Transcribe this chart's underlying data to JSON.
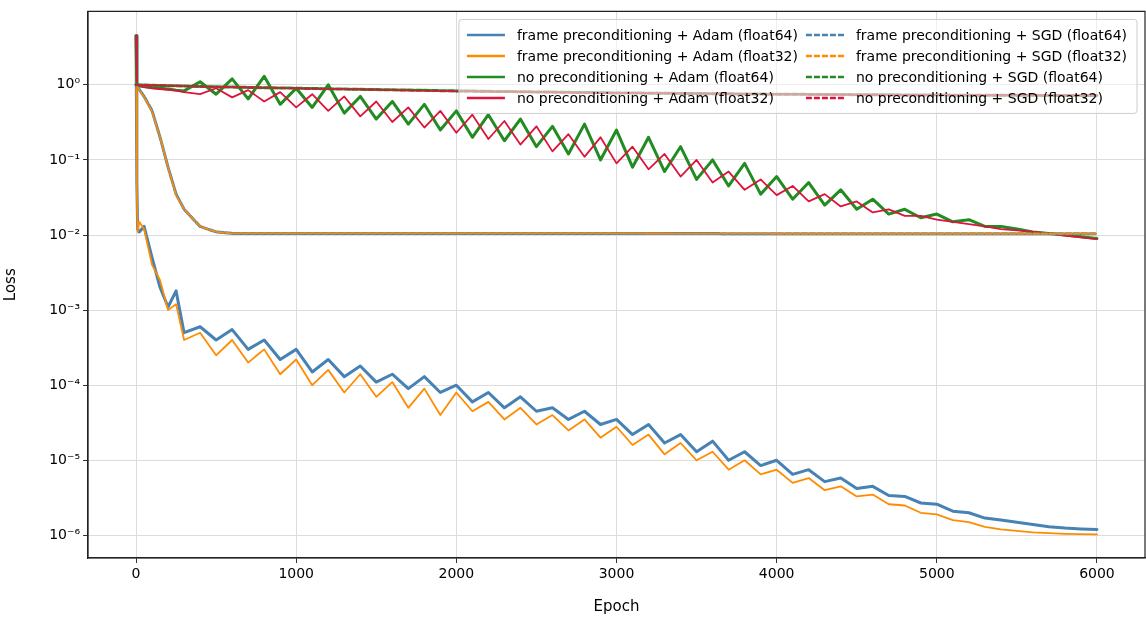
{
  "chart_data": {
    "type": "line",
    "xlabel": "Epoch",
    "ylabel": "Loss",
    "log": "y",
    "grid": true,
    "legend": "top right",
    "marker": "none",
    "xlim": [
      -300,
      6300
    ],
    "xticks": [
      0,
      1000,
      2000,
      3000,
      4000,
      5000,
      6000
    ],
    "ylim": [
      5e-07,
      9.5
    ],
    "yticks": [
      {
        "value": 1e-06,
        "label": "10⁻⁶"
      },
      {
        "value": 1e-05,
        "label": "10⁻⁵"
      },
      {
        "value": 0.0001,
        "label": "10⁻⁴"
      },
      {
        "value": 0.001,
        "label": "10⁻³"
      },
      {
        "value": 0.01,
        "label": "10⁻²"
      },
      {
        "value": 0.1,
        "label": "10⁻¹"
      },
      {
        "value": 1,
        "label": "10⁰"
      }
    ],
    "x": [
      0,
      5,
      10,
      20,
      50,
      100,
      150,
      200,
      250,
      300,
      400,
      500,
      600,
      700,
      800,
      900,
      1000,
      1100,
      1200,
      1300,
      1400,
      1500,
      1600,
      1700,
      1800,
      1900,
      2000,
      2100,
      2200,
      2300,
      2400,
      2500,
      2600,
      2700,
      2800,
      2900,
      3000,
      3100,
      3200,
      3300,
      3400,
      3500,
      3600,
      3700,
      3800,
      3900,
      4000,
      4100,
      4200,
      4300,
      4400,
      4500,
      4600,
      4700,
      4800,
      4900,
      5000,
      5100,
      5200,
      5300,
      5400,
      5500,
      5600,
      5700,
      5800,
      5900,
      6000
    ],
    "series": [
      {
        "name": "frame preconditioning + Adam (float64)",
        "color": "#4682b4",
        "line_style": "solid",
        "values": [
          4.5,
          0.05,
          0.012,
          0.011,
          0.013,
          0.005,
          0.002,
          0.0011,
          0.0018,
          0.0005,
          0.0006,
          0.0004,
          0.00055,
          0.0003,
          0.0004,
          0.00022,
          0.0003,
          0.00015,
          0.00022,
          0.00013,
          0.00018,
          0.00011,
          0.00014,
          9e-05,
          0.00013,
          8e-05,
          0.0001,
          6e-05,
          8e-05,
          5e-05,
          7e-05,
          4.5e-05,
          5e-05,
          3.5e-05,
          4.5e-05,
          3e-05,
          3.5e-05,
          2.2e-05,
          3e-05,
          1.7e-05,
          2.2e-05,
          1.3e-05,
          1.8e-05,
          1e-05,
          1.3e-05,
          8.5e-06,
          1e-05,
          6.5e-06,
          7.5e-06,
          5.2e-06,
          5.8e-06,
          4.2e-06,
          4.5e-06,
          3.4e-06,
          3.3e-06,
          2.7e-06,
          2.6e-06,
          2.1e-06,
          2e-06,
          1.7e-06,
          1.6e-06,
          1.5e-06,
          1.4e-06,
          1.3e-06,
          1.25e-06,
          1.22e-06,
          1.2e-06
        ]
      },
      {
        "name": "frame preconditioning + Adam (float32)",
        "color": "#ff8c00",
        "line_style": "solid",
        "values": [
          4.5,
          0.04,
          0.011,
          0.015,
          0.012,
          0.004,
          0.0025,
          0.001,
          0.0012,
          0.0004,
          0.0005,
          0.00025,
          0.0004,
          0.0002,
          0.0003,
          0.00014,
          0.00022,
          0.0001,
          0.00016,
          8e-05,
          0.00014,
          7e-05,
          0.00011,
          5e-05,
          9e-05,
          4e-05,
          8e-05,
          4.5e-05,
          6e-05,
          3.5e-05,
          5e-05,
          3e-05,
          4e-05,
          2.5e-05,
          3.5e-05,
          2e-05,
          2.8e-05,
          1.6e-05,
          2.2e-05,
          1.2e-05,
          1.7e-05,
          1e-05,
          1.3e-05,
          7.5e-06,
          1e-05,
          6.5e-06,
          7.5e-06,
          5e-06,
          5.8e-06,
          4e-06,
          4.5e-06,
          3.3e-06,
          3.5e-06,
          2.6e-06,
          2.5e-06,
          2e-06,
          1.9e-06,
          1.6e-06,
          1.5e-06,
          1.3e-06,
          1.2e-06,
          1.15e-06,
          1.1e-06,
          1.07e-06,
          1.05e-06,
          1.04e-06,
          1.03e-06
        ]
      },
      {
        "name": "no preconditioning + Adam (float64)",
        "color": "#228b22",
        "line_style": "solid",
        "values": [
          4.5,
          1.0,
          0.98,
          0.97,
          0.95,
          0.92,
          0.9,
          0.88,
          0.85,
          0.83,
          1.1,
          0.75,
          1.2,
          0.65,
          1.3,
          0.55,
          0.9,
          0.5,
          1.0,
          0.42,
          0.7,
          0.35,
          0.6,
          0.3,
          0.55,
          0.25,
          0.45,
          0.2,
          0.4,
          0.18,
          0.35,
          0.15,
          0.28,
          0.12,
          0.3,
          0.1,
          0.25,
          0.08,
          0.2,
          0.07,
          0.15,
          0.055,
          0.1,
          0.045,
          0.09,
          0.035,
          0.06,
          0.03,
          0.05,
          0.025,
          0.04,
          0.022,
          0.03,
          0.019,
          0.022,
          0.017,
          0.019,
          0.015,
          0.016,
          0.013,
          0.013,
          0.012,
          0.011,
          0.0105,
          0.01,
          0.0095,
          0.009
        ]
      },
      {
        "name": "no preconditioning + Adam (float32)",
        "color": "#dc143c",
        "line_style": "solid",
        "values": [
          4.5,
          1.0,
          0.97,
          0.96,
          0.93,
          0.9,
          0.88,
          0.86,
          0.84,
          0.8,
          0.75,
          0.9,
          0.68,
          0.85,
          0.6,
          0.8,
          0.5,
          0.75,
          0.45,
          0.7,
          0.38,
          0.6,
          0.32,
          0.5,
          0.27,
          0.45,
          0.23,
          0.4,
          0.19,
          0.33,
          0.16,
          0.28,
          0.13,
          0.22,
          0.11,
          0.2,
          0.09,
          0.15,
          0.075,
          0.12,
          0.06,
          0.1,
          0.05,
          0.07,
          0.04,
          0.055,
          0.034,
          0.045,
          0.028,
          0.035,
          0.024,
          0.028,
          0.02,
          0.022,
          0.018,
          0.018,
          0.016,
          0.015,
          0.014,
          0.013,
          0.012,
          0.0115,
          0.011,
          0.0105,
          0.0098,
          0.0093,
          0.0088
        ]
      },
      {
        "name": "frame preconditioning + SGD (float64)",
        "color": "#4682b4",
        "line_style": "dashed",
        "x": [
          0,
          5,
          10,
          20,
          50,
          100,
          150,
          200,
          250,
          300,
          400,
          500,
          600,
          1000,
          2000,
          3000,
          4000,
          5000,
          6000
        ],
        "values": [
          1.0,
          0.97,
          0.93,
          0.87,
          0.7,
          0.45,
          0.2,
          0.08,
          0.035,
          0.022,
          0.013,
          0.011,
          0.0105,
          0.0105,
          0.0105,
          0.0105,
          0.0104,
          0.0104,
          0.0104
        ]
      },
      {
        "name": "frame preconditioning + SGD (float32)",
        "color": "#ff8c00",
        "line_style": "dashed",
        "x": [
          0,
          5,
          10,
          20,
          50,
          100,
          150,
          200,
          250,
          300,
          400,
          500,
          600,
          1000,
          2000,
          3000,
          4000,
          5000,
          6000
        ],
        "values": [
          1.0,
          0.96,
          0.92,
          0.86,
          0.69,
          0.44,
          0.2,
          0.08,
          0.034,
          0.022,
          0.013,
          0.011,
          0.0105,
          0.0105,
          0.0105,
          0.0105,
          0.0104,
          0.0104,
          0.0104
        ]
      },
      {
        "name": "no preconditioning + SGD (float64)",
        "color": "#228b22",
        "line_style": "dashed",
        "x": [
          0,
          500,
          1000,
          2000,
          3000,
          4000,
          5000,
          6000
        ],
        "values": [
          1.0,
          0.94,
          0.9,
          0.83,
          0.78,
          0.75,
          0.73,
          0.72
        ]
      },
      {
        "name": "no preconditioning + SGD (float32)",
        "color": "#dc143c",
        "line_style": "dashed",
        "x": [
          0,
          500,
          1000,
          2000,
          3000,
          4000,
          5000,
          6000
        ],
        "values": [
          1.0,
          0.94,
          0.9,
          0.82,
          0.78,
          0.75,
          0.73,
          0.72
        ]
      }
    ]
  }
}
